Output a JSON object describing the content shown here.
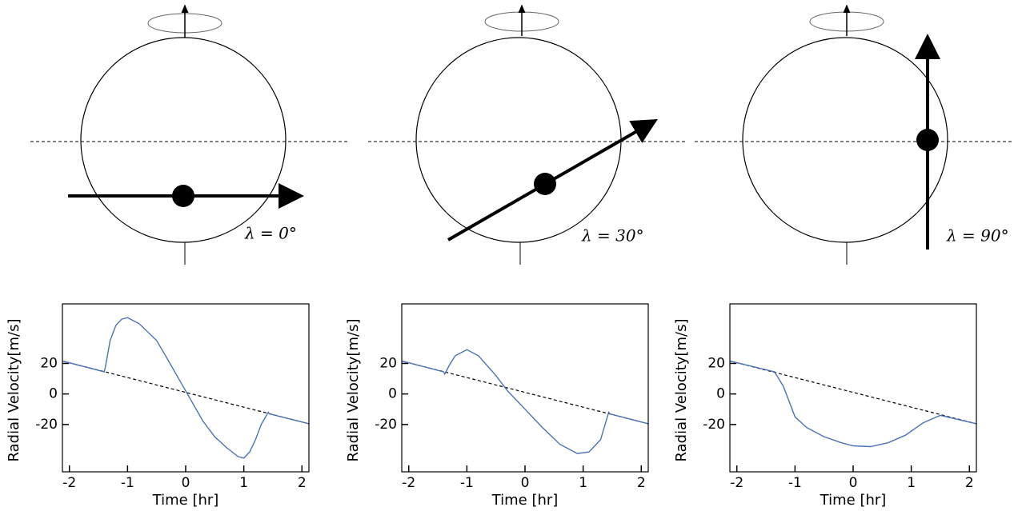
{
  "diagrams": [
    {
      "label": "λ = 0°"
    },
    {
      "label": "λ = 30°"
    },
    {
      "label": "λ = 90°"
    }
  ],
  "chart_data": [
    {
      "type": "line",
      "x_label": "Time [hr]",
      "y_label": "Radial Velocity[m/s]",
      "xlim": [
        -2.12,
        2.12
      ],
      "ylim": [
        -51,
        59
      ],
      "xticks": [
        -2,
        -1,
        0,
        1,
        2
      ],
      "yticks": [
        20,
        0,
        -20
      ],
      "series": [
        {
          "color": "#000000",
          "dashed": true,
          "x": [
            -2.12,
            2.12
          ],
          "values": [
            21.6,
            -19.5
          ]
        },
        {
          "color": "#4a72b8",
          "dashed": false,
          "x": [
            -2.12,
            -1.4,
            -1.38,
            -1.3,
            -1.2,
            -1.1,
            -1.0,
            -0.8,
            -0.5,
            -0.3,
            0,
            0.3,
            0.5,
            0.7,
            0.9,
            1.0,
            1.1,
            1.2,
            1.3,
            1.42,
            1.44,
            2.12
          ],
          "values": [
            21.6,
            14.5,
            18,
            35,
            45,
            49,
            50,
            46,
            35,
            22,
            2,
            -18,
            -28,
            -35,
            -41,
            -42,
            -38,
            -30,
            -20,
            -12,
            -13,
            -19.5
          ]
        }
      ]
    },
    {
      "type": "line",
      "x_label": "Time [hr]",
      "y_label": "Radial Velocity[m/s]",
      "xlim": [
        -2.12,
        2.12
      ],
      "ylim": [
        -51,
        59
      ],
      "xticks": [
        -2,
        -1,
        0,
        1,
        2
      ],
      "yticks": [
        20,
        0,
        -20
      ],
      "series": [
        {
          "color": "#000000",
          "dashed": true,
          "x": [
            -2.12,
            2.12
          ],
          "values": [
            21.6,
            -19.5
          ]
        },
        {
          "color": "#4a72b8",
          "dashed": false,
          "x": [
            -2.12,
            -1.4,
            -1.38,
            -1.3,
            -1.2,
            -1.0,
            -0.8,
            -0.5,
            -0.3,
            0,
            0.3,
            0.6,
            0.9,
            1.1,
            1.3,
            1.44,
            1.46,
            2.12
          ],
          "values": [
            21.6,
            14.5,
            13,
            19,
            25,
            29,
            25,
            12,
            2,
            -10,
            -22,
            -33,
            -39,
            -38,
            -30,
            -12,
            -13,
            -19.5
          ]
        }
      ]
    },
    {
      "type": "line",
      "x_label": "Time [hr]",
      "y_label": "Radial Velocity[m/s]",
      "xlim": [
        -2.12,
        2.12
      ],
      "ylim": [
        -51,
        59
      ],
      "xticks": [
        -2,
        -1,
        0,
        1,
        2
      ],
      "yticks": [
        20,
        0,
        -20
      ],
      "series": [
        {
          "color": "#000000",
          "dashed": true,
          "x": [
            -2.12,
            2.12
          ],
          "values": [
            21.6,
            -19.5
          ]
        },
        {
          "color": "#4a72b8",
          "dashed": false,
          "x": [
            -2.12,
            -1.35,
            -1.2,
            -1.0,
            -0.8,
            -0.5,
            -0.2,
            0,
            0.3,
            0.6,
            0.9,
            1.2,
            1.5,
            2.12
          ],
          "values": [
            21.6,
            14.5,
            5,
            -15,
            -22,
            -28,
            -32,
            -34,
            -34.5,
            -32,
            -27,
            -19,
            -14,
            -19.5
          ]
        }
      ]
    }
  ]
}
